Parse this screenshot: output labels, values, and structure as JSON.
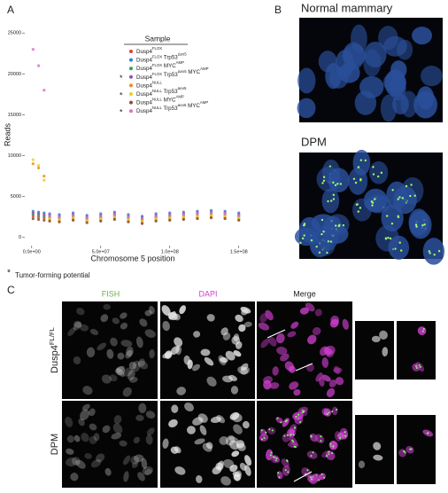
{
  "chart_data": {
    "type": "scatter",
    "legend_title": "Sample",
    "x_label": "Chromosome 5 position",
    "y_label": "Reads",
    "x": [
      1000000,
      5000000,
      9000000,
      13000000,
      20000000,
      30000000,
      40000000,
      50000000,
      60000000,
      70000000,
      80000000,
      90000000,
      100000000,
      110000000,
      120000000,
      130000000,
      140000000,
      150000000
    ],
    "series": [
      {
        "name": "Dusp4FLOX",
        "color": "#e0403a",
        "values": [
          2600,
          2500,
          2400,
          2300,
          2200,
          2400,
          2100,
          2300,
          2500,
          2200,
          2000,
          2300,
          2400,
          2500,
          2600,
          2700,
          2600,
          2400
        ]
      },
      {
        "name": "Dusp4FLOX Trp53Δex5",
        "color": "#3a7fd0",
        "values": [
          3200,
          3100,
          3000,
          2900,
          2800,
          3000,
          2700,
          2900,
          3100,
          2800,
          2600,
          2900,
          3000,
          3100,
          3200,
          3300,
          3200,
          3000
        ]
      },
      {
        "name": "Dusp4FLOX MYCAMP",
        "color": "#3aa04a",
        "values": [
          2800,
          2700,
          2600,
          2500,
          2400,
          2600,
          2300,
          2500,
          2700,
          2400,
          2200,
          2500,
          2600,
          2700,
          2800,
          2900,
          2800,
          2600
        ]
      },
      {
        "name": "Dusp4FLOX Trp53Δex5 MYCAMP",
        "color": "#9050b0",
        "values": [
          3000,
          2900,
          2800,
          2700,
          2600,
          2800,
          2500,
          2700,
          2900,
          2600,
          2400,
          2700,
          2800,
          2900,
          3000,
          3100,
          3000,
          2800
        ]
      },
      {
        "name": "Dusp4NULL",
        "color": "#f08a20",
        "values": [
          9000,
          8500,
          7500,
          2100,
          2000,
          2200,
          1900,
          2100,
          2300,
          2000,
          1800,
          2100,
          2200,
          2300,
          2400,
          2500,
          2400,
          2200
        ]
      },
      {
        "name": "Dusp4NULL Trp53Δex5",
        "color": "#e8d020",
        "values": [
          9500,
          8800,
          7000,
          2300,
          2200,
          2400,
          2100,
          2300,
          2500,
          2200,
          2000,
          2300,
          2400,
          2500,
          2600,
          2700,
          2600,
          2400
        ]
      },
      {
        "name": "Dusp4NULL MYCAMP",
        "color": "#8a5030",
        "values": [
          2300,
          2200,
          2100,
          2000,
          1900,
          2100,
          1800,
          2000,
          2200,
          1900,
          1700,
          2000,
          2100,
          2200,
          2300,
          2400,
          2300,
          2100
        ]
      },
      {
        "name": "Dusp4NULL Trp53Δex5 MYCAMP",
        "color": "#e070c0",
        "values": [
          23000,
          21000,
          18000,
          2600,
          2500,
          2700,
          2400,
          2600,
          2800,
          2500,
          2300,
          2600,
          2700,
          2800,
          2900,
          3000,
          2900,
          2700
        ]
      }
    ],
    "starred_series": [
      3,
      5,
      7
    ],
    "xlim": [
      -5000000,
      163000000
    ],
    "ylim": [
      -1000,
      26000
    ],
    "xticks": [
      {
        "value": 0,
        "label": "0.0e+00"
      },
      {
        "value": 50000000,
        "label": "5.0e+07"
      },
      {
        "value": 100000000,
        "label": "1.0e+08"
      },
      {
        "value": 150000000,
        "label": "1.5e+08"
      }
    ],
    "yticks": [
      0,
      5000,
      10000,
      15000,
      20000,
      25000
    ],
    "footnote": {
      "symbol": "*",
      "text": "Tumor-forming potential"
    }
  },
  "panels": {
    "a": "A",
    "b": {
      "label": "B",
      "top_title": "Normal mammary",
      "bottom_title": "DPM"
    },
    "c": {
      "label": "C",
      "columns": [
        "FISH",
        "DAPI",
        "Merge"
      ],
      "rows": [
        "Dusp4FL/FL",
        "DPM"
      ]
    }
  }
}
